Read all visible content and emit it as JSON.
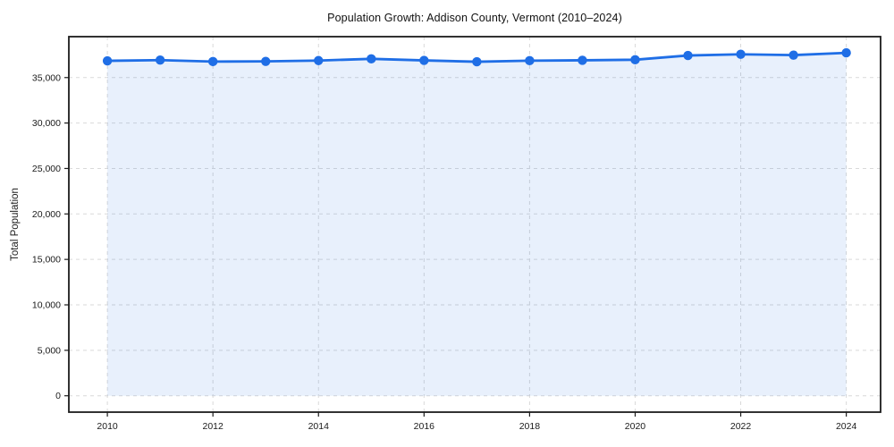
{
  "style": {
    "accent_line_color": "#1f6ee6",
    "marker_color": "#1f6ee6",
    "area_fill_color": "rgba(31,110,230,0.10)",
    "grid_color": "#d9d9d9",
    "spine_color": "#1c1c1c",
    "tick_color": "#1c1c1c",
    "text_color": "#1a1a1a",
    "background_color": "#ffffff"
  },
  "chart_data": {
    "type": "line",
    "title": "Population Growth: Addison County, Vermont (2010–2024)",
    "xlabel": "",
    "ylabel": "Total Population",
    "series_name": "Total Population",
    "x": [
      2010,
      2011,
      2012,
      2013,
      2014,
      2015,
      2016,
      2017,
      2018,
      2019,
      2020,
      2021,
      2022,
      2023,
      2024
    ],
    "values": [
      36840,
      36920,
      36760,
      36780,
      36870,
      37060,
      36890,
      36740,
      36860,
      36900,
      36960,
      37430,
      37560,
      37470,
      37720
    ],
    "x_tick_labels": [
      "2010",
      "2012",
      "2014",
      "2016",
      "2018",
      "2020",
      "2022",
      "2024"
    ],
    "x_ticks": [
      2010,
      2012,
      2014,
      2016,
      2018,
      2020,
      2022,
      2024
    ],
    "y_ticks": [
      0,
      5000,
      10000,
      15000,
      20000,
      25000,
      30000,
      35000
    ],
    "y_tick_labels": [
      "0",
      "5,000",
      "10,000",
      "15,000",
      "20,000",
      "25,000",
      "30,000",
      "35,000"
    ],
    "xlim": [
      2009.27,
      2024.65
    ],
    "ylim": [
      -1800,
      39500
    ],
    "grid": true,
    "grid_style": "dashed",
    "legend": false,
    "marker": "circle",
    "area_fill": true
  }
}
